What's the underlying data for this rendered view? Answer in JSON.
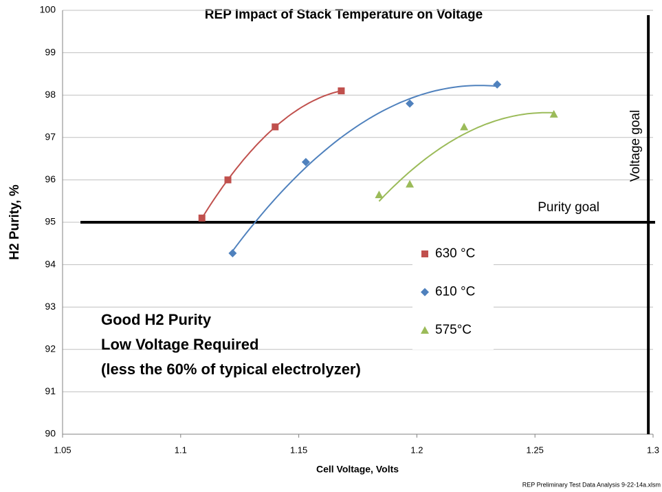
{
  "chart_data": {
    "type": "scatter",
    "title": "REP Impact of Stack Temperature on Voltage",
    "xlabel": "Cell Voltage, Volts",
    "ylabel": "H2 Purity, %",
    "xlim": [
      1.05,
      1.3
    ],
    "ylim": [
      90,
      100
    ],
    "xticks": [
      1.05,
      1.1,
      1.15,
      1.2,
      1.25,
      1.3
    ],
    "yticks": [
      90,
      91,
      92,
      93,
      94,
      95,
      96,
      97,
      98,
      99,
      100
    ],
    "grid": true,
    "trendline": "polynomial",
    "series": [
      {
        "name": "630 °C",
        "color": "#c0504d",
        "marker": "square",
        "x": [
          1.109,
          1.12,
          1.14,
          1.168
        ],
        "values": [
          95.1,
          96.0,
          97.25,
          98.1
        ]
      },
      {
        "name": "610 °C",
        "color": "#4f81bd",
        "marker": "diamond",
        "x": [
          1.122,
          1.153,
          1.197,
          1.234
        ],
        "values": [
          94.27,
          96.42,
          97.8,
          98.25
        ]
      },
      {
        "name": "575°C",
        "color": "#9bbb59",
        "marker": "triangle",
        "x": [
          1.184,
          1.197,
          1.22,
          1.258
        ],
        "values": [
          95.65,
          95.9,
          97.25,
          97.55
        ]
      }
    ],
    "purity_goal": {
      "label": "Purity goal",
      "value": 95
    },
    "voltage_goal": {
      "label": "Voltage goal",
      "value": 1.298
    },
    "annotation": [
      "Good H2 Purity",
      "Low Voltage Required",
      "(less the 60% of typical electrolyzer)"
    ],
    "footer": "REP Preliminary Test Data Analysis 9-22-14a.xlsm"
  }
}
